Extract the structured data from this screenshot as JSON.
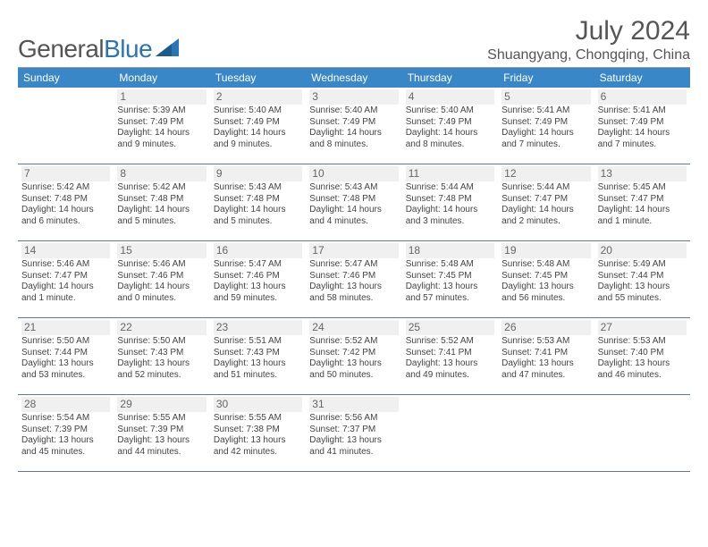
{
  "logo": {
    "text1": "General",
    "text2": "Blue"
  },
  "title": "July 2024",
  "location": "Shuangyang, Chongqing, China",
  "dayHeaders": [
    "Sunday",
    "Monday",
    "Tuesday",
    "Wednesday",
    "Thursday",
    "Friday",
    "Saturday"
  ],
  "headerColor": "#3a87c8",
  "borderColor": "#5a7a9a",
  "cells": [
    {
      "blank": true
    },
    {
      "date": "1",
      "sunrise": "Sunrise: 5:39 AM",
      "sunset": "Sunset: 7:49 PM",
      "day1": "Daylight: 14 hours",
      "day2": "and 9 minutes."
    },
    {
      "date": "2",
      "sunrise": "Sunrise: 5:40 AM",
      "sunset": "Sunset: 7:49 PM",
      "day1": "Daylight: 14 hours",
      "day2": "and 9 minutes."
    },
    {
      "date": "3",
      "sunrise": "Sunrise: 5:40 AM",
      "sunset": "Sunset: 7:49 PM",
      "day1": "Daylight: 14 hours",
      "day2": "and 8 minutes."
    },
    {
      "date": "4",
      "sunrise": "Sunrise: 5:40 AM",
      "sunset": "Sunset: 7:49 PM",
      "day1": "Daylight: 14 hours",
      "day2": "and 8 minutes."
    },
    {
      "date": "5",
      "sunrise": "Sunrise: 5:41 AM",
      "sunset": "Sunset: 7:49 PM",
      "day1": "Daylight: 14 hours",
      "day2": "and 7 minutes."
    },
    {
      "date": "6",
      "sunrise": "Sunrise: 5:41 AM",
      "sunset": "Sunset: 7:49 PM",
      "day1": "Daylight: 14 hours",
      "day2": "and 7 minutes."
    },
    {
      "date": "7",
      "sunrise": "Sunrise: 5:42 AM",
      "sunset": "Sunset: 7:48 PM",
      "day1": "Daylight: 14 hours",
      "day2": "and 6 minutes."
    },
    {
      "date": "8",
      "sunrise": "Sunrise: 5:42 AM",
      "sunset": "Sunset: 7:48 PM",
      "day1": "Daylight: 14 hours",
      "day2": "and 5 minutes."
    },
    {
      "date": "9",
      "sunrise": "Sunrise: 5:43 AM",
      "sunset": "Sunset: 7:48 PM",
      "day1": "Daylight: 14 hours",
      "day2": "and 5 minutes."
    },
    {
      "date": "10",
      "sunrise": "Sunrise: 5:43 AM",
      "sunset": "Sunset: 7:48 PM",
      "day1": "Daylight: 14 hours",
      "day2": "and 4 minutes."
    },
    {
      "date": "11",
      "sunrise": "Sunrise: 5:44 AM",
      "sunset": "Sunset: 7:48 PM",
      "day1": "Daylight: 14 hours",
      "day2": "and 3 minutes."
    },
    {
      "date": "12",
      "sunrise": "Sunrise: 5:44 AM",
      "sunset": "Sunset: 7:47 PM",
      "day1": "Daylight: 14 hours",
      "day2": "and 2 minutes."
    },
    {
      "date": "13",
      "sunrise": "Sunrise: 5:45 AM",
      "sunset": "Sunset: 7:47 PM",
      "day1": "Daylight: 14 hours",
      "day2": "and 1 minute."
    },
    {
      "date": "14",
      "sunrise": "Sunrise: 5:46 AM",
      "sunset": "Sunset: 7:47 PM",
      "day1": "Daylight: 14 hours",
      "day2": "and 1 minute."
    },
    {
      "date": "15",
      "sunrise": "Sunrise: 5:46 AM",
      "sunset": "Sunset: 7:46 PM",
      "day1": "Daylight: 14 hours",
      "day2": "and 0 minutes."
    },
    {
      "date": "16",
      "sunrise": "Sunrise: 5:47 AM",
      "sunset": "Sunset: 7:46 PM",
      "day1": "Daylight: 13 hours",
      "day2": "and 59 minutes."
    },
    {
      "date": "17",
      "sunrise": "Sunrise: 5:47 AM",
      "sunset": "Sunset: 7:46 PM",
      "day1": "Daylight: 13 hours",
      "day2": "and 58 minutes."
    },
    {
      "date": "18",
      "sunrise": "Sunrise: 5:48 AM",
      "sunset": "Sunset: 7:45 PM",
      "day1": "Daylight: 13 hours",
      "day2": "and 57 minutes."
    },
    {
      "date": "19",
      "sunrise": "Sunrise: 5:48 AM",
      "sunset": "Sunset: 7:45 PM",
      "day1": "Daylight: 13 hours",
      "day2": "and 56 minutes."
    },
    {
      "date": "20",
      "sunrise": "Sunrise: 5:49 AM",
      "sunset": "Sunset: 7:44 PM",
      "day1": "Daylight: 13 hours",
      "day2": "and 55 minutes."
    },
    {
      "date": "21",
      "sunrise": "Sunrise: 5:50 AM",
      "sunset": "Sunset: 7:44 PM",
      "day1": "Daylight: 13 hours",
      "day2": "and 53 minutes."
    },
    {
      "date": "22",
      "sunrise": "Sunrise: 5:50 AM",
      "sunset": "Sunset: 7:43 PM",
      "day1": "Daylight: 13 hours",
      "day2": "and 52 minutes."
    },
    {
      "date": "23",
      "sunrise": "Sunrise: 5:51 AM",
      "sunset": "Sunset: 7:43 PM",
      "day1": "Daylight: 13 hours",
      "day2": "and 51 minutes."
    },
    {
      "date": "24",
      "sunrise": "Sunrise: 5:52 AM",
      "sunset": "Sunset: 7:42 PM",
      "day1": "Daylight: 13 hours",
      "day2": "and 50 minutes."
    },
    {
      "date": "25",
      "sunrise": "Sunrise: 5:52 AM",
      "sunset": "Sunset: 7:41 PM",
      "day1": "Daylight: 13 hours",
      "day2": "and 49 minutes."
    },
    {
      "date": "26",
      "sunrise": "Sunrise: 5:53 AM",
      "sunset": "Sunset: 7:41 PM",
      "day1": "Daylight: 13 hours",
      "day2": "and 47 minutes."
    },
    {
      "date": "27",
      "sunrise": "Sunrise: 5:53 AM",
      "sunset": "Sunset: 7:40 PM",
      "day1": "Daylight: 13 hours",
      "day2": "and 46 minutes."
    },
    {
      "date": "28",
      "sunrise": "Sunrise: 5:54 AM",
      "sunset": "Sunset: 7:39 PM",
      "day1": "Daylight: 13 hours",
      "day2": "and 45 minutes."
    },
    {
      "date": "29",
      "sunrise": "Sunrise: 5:55 AM",
      "sunset": "Sunset: 7:39 PM",
      "day1": "Daylight: 13 hours",
      "day2": "and 44 minutes."
    },
    {
      "date": "30",
      "sunrise": "Sunrise: 5:55 AM",
      "sunset": "Sunset: 7:38 PM",
      "day1": "Daylight: 13 hours",
      "day2": "and 42 minutes."
    },
    {
      "date": "31",
      "sunrise": "Sunrise: 5:56 AM",
      "sunset": "Sunset: 7:37 PM",
      "day1": "Daylight: 13 hours",
      "day2": "and 41 minutes."
    },
    {
      "blank": true
    },
    {
      "blank": true
    },
    {
      "blank": true
    }
  ]
}
